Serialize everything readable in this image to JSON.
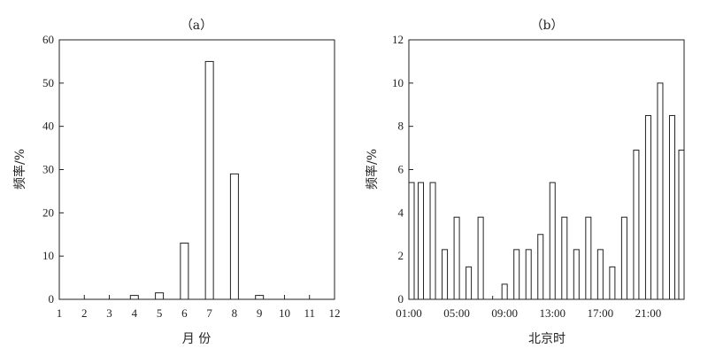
{
  "chart_data": [
    {
      "id": "a",
      "type": "bar",
      "title": "（a）",
      "xlabel": "月 份",
      "ylabel": "频率/%",
      "categories": [
        "1",
        "2",
        "3",
        "4",
        "5",
        "6",
        "7",
        "8",
        "9",
        "10",
        "11",
        "12"
      ],
      "values": [
        0,
        0,
        0,
        0.9,
        1.5,
        13,
        55,
        29,
        0.9,
        0,
        0,
        0
      ],
      "ylim": [
        0,
        60
      ],
      "yticks": [
        "0",
        "10",
        "20",
        "30",
        "40",
        "50",
        "60"
      ],
      "xticks": [
        "1",
        "2",
        "3",
        "4",
        "5",
        "6",
        "7",
        "8",
        "9",
        "10",
        "11",
        "12"
      ],
      "grid": false
    },
    {
      "id": "b",
      "type": "bar",
      "title": "（b）",
      "xlabel": "北京时",
      "ylabel": "频率/%",
      "categories": [
        "01:00",
        "02:00",
        "03:00",
        "04:00",
        "05:00",
        "06:00",
        "07:00",
        "08:00",
        "09:00",
        "10:00",
        "11:00",
        "12:00",
        "13:00",
        "14:00",
        "15:00",
        "16:00",
        "17:00",
        "18:00",
        "19:00",
        "20:00",
        "21:00",
        "22:00",
        "23:00",
        "24:00"
      ],
      "values": [
        5.4,
        5.4,
        5.4,
        2.3,
        3.8,
        1.5,
        3.8,
        0,
        0.7,
        2.3,
        2.3,
        3.0,
        5.4,
        3.8,
        2.3,
        3.8,
        2.3,
        1.5,
        3.8,
        6.9,
        8.5,
        10.0,
        8.5,
        6.9
      ],
      "ylim": [
        0,
        12
      ],
      "yticks": [
        "0",
        "2",
        "4",
        "6",
        "8",
        "10",
        "12"
      ],
      "xticks": [
        "01:00",
        "05:00",
        "09:00",
        "13:00",
        "17:00",
        "21:00"
      ],
      "grid": false
    }
  ]
}
